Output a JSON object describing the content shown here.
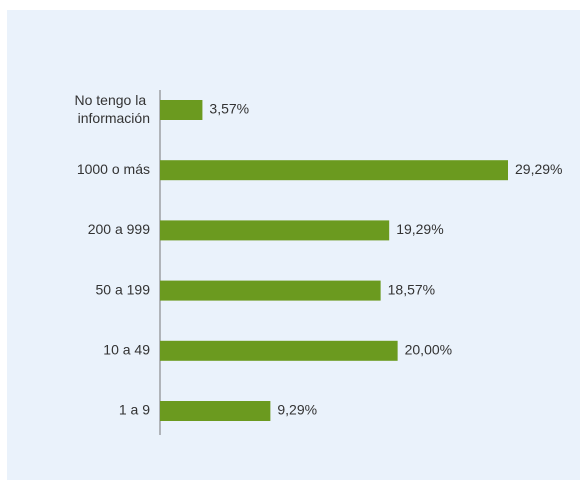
{
  "chart_data": {
    "type": "bar",
    "orientation": "horizontal",
    "categories": [
      "No tengo la información",
      "1000 o más",
      "200 a 999",
      "50 a 199",
      "10 a 49",
      "1 a 9"
    ],
    "values": [
      3.57,
      29.29,
      19.29,
      18.57,
      20.0,
      9.29
    ],
    "value_labels": [
      "3,57%",
      "29,29%",
      "19,29%",
      "18,57%",
      "20,00%",
      "9,29%"
    ],
    "color": "#6b9a1f"
  }
}
